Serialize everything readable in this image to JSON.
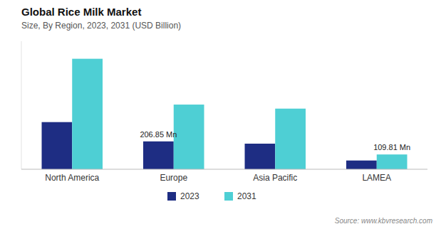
{
  "chart_data": {
    "type": "bar",
    "title": "Global Rice Milk Market",
    "subtitle": "Size, By Region, 2023, 2031 (USD Billion)",
    "source": "Source: www.kbvresearch.com",
    "categories": [
      "North America",
      "Europe",
      "Asia Pacific",
      "LAMEA"
    ],
    "series": [
      {
        "name": "2023",
        "color": "#1e2d83",
        "values": [
          350,
          206.85,
          190,
          65
        ]
      },
      {
        "name": "2031",
        "color": "#4ecfd4",
        "values": [
          820,
          480,
          450,
          109.81
        ]
      }
    ],
    "annotations": [
      {
        "text": "206.85 Mn",
        "category": "Europe",
        "series": "2023"
      },
      {
        "text": "109.81 Mn",
        "category": "LAMEA",
        "series": "2031"
      }
    ],
    "ylim": [
      0,
      950
    ],
    "grid": false,
    "legend": "bottom",
    "tick_labels": "x"
  }
}
